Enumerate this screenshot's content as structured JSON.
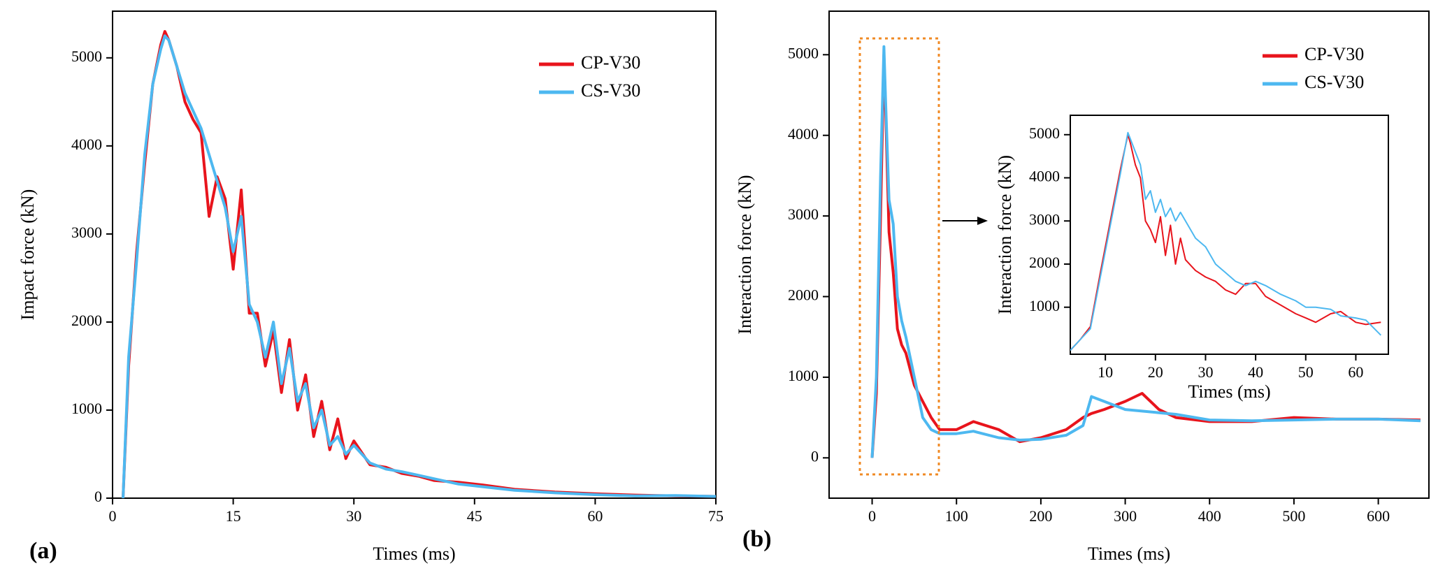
{
  "chart_data": [
    {
      "type": "line",
      "panel_label": "(a)",
      "x_label": "Times (ms)",
      "y_label": "Impact force (kN)",
      "x": [
        1.3,
        2,
        3,
        4,
        5,
        6,
        6.5,
        7,
        8,
        9,
        10,
        11,
        12,
        13,
        14,
        15,
        16,
        17,
        18,
        19,
        20,
        21,
        22,
        23,
        24,
        25,
        26,
        27,
        28,
        29,
        30,
        32,
        34,
        36,
        38,
        40,
        43,
        46,
        50,
        55,
        60,
        65,
        70,
        75
      ],
      "series": [
        {
          "name": "CP-V30",
          "color": "#e8141c",
          "values": [
            0,
            1500,
            2800,
            3800,
            4700,
            5150,
            5300,
            5200,
            4900,
            4500,
            4300,
            4150,
            3200,
            3650,
            3400,
            2600,
            3500,
            2100,
            2100,
            1500,
            1900,
            1200,
            1800,
            1000,
            1400,
            700,
            1100,
            550,
            900,
            450,
            650,
            380,
            350,
            280,
            250,
            200,
            180,
            150,
            100,
            70,
            50,
            35,
            25,
            20
          ]
        },
        {
          "name": "CS-V30",
          "color": "#4db8f0",
          "values": [
            0,
            1600,
            2700,
            3900,
            4700,
            5100,
            5250,
            5200,
            4900,
            4600,
            4400,
            4200,
            3900,
            3600,
            3300,
            2800,
            3200,
            2200,
            2000,
            1600,
            2000,
            1300,
            1700,
            1100,
            1300,
            800,
            1000,
            600,
            700,
            500,
            600,
            400,
            330,
            300,
            260,
            220,
            160,
            130,
            90,
            60,
            40,
            25,
            30,
            20
          ]
        }
      ],
      "xlim": [
        0,
        75
      ],
      "xticks": [
        0,
        15,
        30,
        45,
        60,
        75
      ],
      "ylim": [
        0,
        5530
      ],
      "yticks": [
        0,
        1000,
        2000,
        3000,
        4000,
        5000
      ]
    },
    {
      "type": "line",
      "panel_label": "(b)",
      "x_label": "Times (ms)",
      "y_label": "Interaction force (kN)",
      "x": [
        0,
        5,
        10,
        14,
        16,
        20,
        25,
        30,
        35,
        40,
        50,
        60,
        70,
        80,
        100,
        120,
        150,
        175,
        200,
        230,
        250,
        260,
        275,
        300,
        320,
        340,
        360,
        400,
        450,
        500,
        550,
        600,
        650
      ],
      "series": [
        {
          "name": "CP-V30",
          "color": "#e8141c",
          "values": [
            0,
            800,
            3000,
            5000,
            4300,
            2800,
            2300,
            1600,
            1400,
            1300,
            900,
            700,
            500,
            350,
            350,
            450,
            350,
            200,
            250,
            350,
            500,
            550,
            600,
            700,
            800,
            600,
            500,
            450,
            450,
            500,
            480,
            480,
            470
          ]
        },
        {
          "name": "CS-V30",
          "color": "#4db8f0",
          "values": [
            0,
            1000,
            3500,
            5100,
            4400,
            3200,
            2900,
            2000,
            1700,
            1500,
            1000,
            500,
            350,
            300,
            300,
            330,
            250,
            220,
            230,
            280,
            400,
            760,
            700,
            600,
            580,
            560,
            540,
            470,
            460,
            470,
            480,
            480,
            460
          ]
        }
      ],
      "xlim": [
        -51,
        660
      ],
      "xticks": [
        0,
        100,
        200,
        300,
        400,
        500,
        600
      ],
      "ylim": [
        -500,
        5540
      ],
      "yticks": [
        0,
        1000,
        2000,
        3000,
        4000,
        5000
      ]
    },
    {
      "type": "line",
      "x_label": "Times (ms)",
      "y_label": "Interaction force (kN)",
      "x": [
        3,
        5,
        7,
        9,
        11,
        13,
        14.5,
        15,
        16,
        17,
        18,
        19,
        20,
        21,
        22,
        23,
        24,
        25,
        26,
        28,
        30,
        32,
        34,
        36,
        38,
        40,
        42,
        45,
        48,
        50,
        52,
        55,
        57,
        60,
        62,
        65
      ],
      "series": [
        {
          "color": "#e8141c",
          "values": [
            0,
            250,
            550,
            1800,
            3000,
            4200,
            5000,
            4800,
            4300,
            4000,
            3000,
            2800,
            2500,
            3100,
            2200,
            2900,
            2000,
            2600,
            2100,
            1850,
            1700,
            1600,
            1400,
            1300,
            1550,
            1550,
            1250,
            1050,
            850,
            750,
            650,
            850,
            900,
            650,
            600,
            650
          ]
        },
        {
          "color": "#4db8f0",
          "values": [
            0,
            250,
            500,
            1700,
            2900,
            4100,
            5050,
            4900,
            4600,
            4300,
            3500,
            3700,
            3200,
            3500,
            3100,
            3300,
            3000,
            3200,
            3000,
            2600,
            2400,
            2000,
            1800,
            1600,
            1500,
            1600,
            1500,
            1300,
            1150,
            1000,
            1000,
            950,
            800,
            750,
            700,
            350
          ]
        }
      ],
      "xlim": [
        3,
        66.5
      ],
      "xticks": [
        10,
        20,
        30,
        40,
        50,
        60
      ],
      "ylim": [
        -90,
        5450
      ],
      "yticks": [
        1000,
        2000,
        3000,
        4000,
        5000
      ]
    }
  ]
}
